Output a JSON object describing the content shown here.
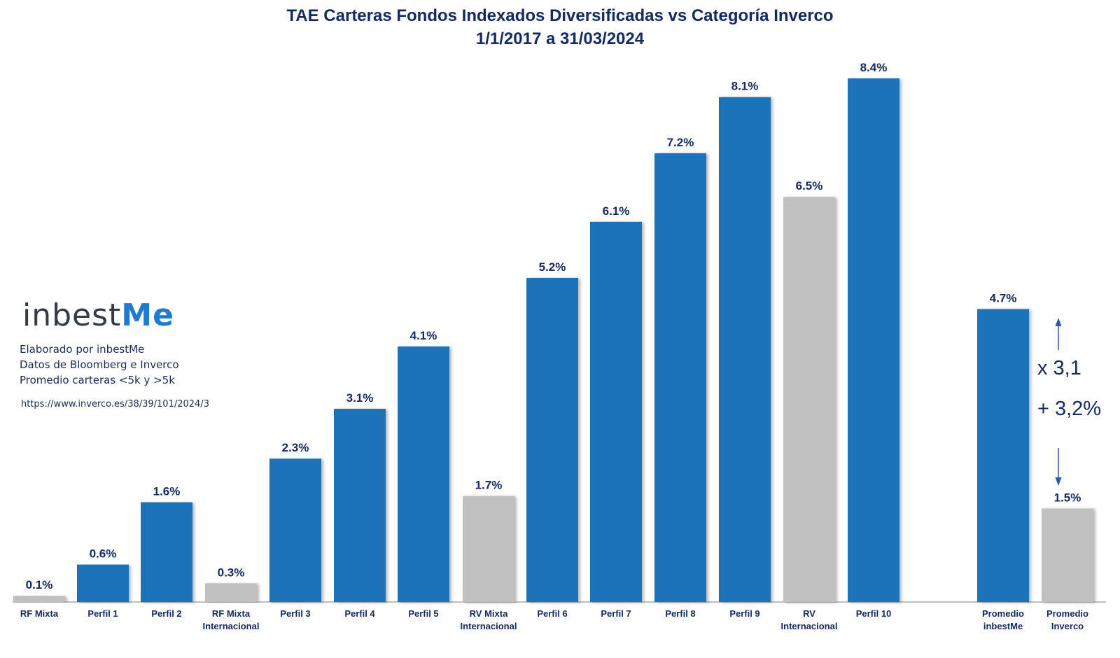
{
  "chart_data": {
    "type": "bar",
    "title": "TAE Carteras Fondos Indexados Diversificadas vs Categoría Inverco",
    "subtitle": "1/1/2017 a 31/03/2024",
    "categories": [
      [
        "RF Mixta"
      ],
      [
        "Perfil 1"
      ],
      [
        "Perfil 2"
      ],
      [
        "RF Mixta",
        "Internacional"
      ],
      [
        "Perfil 3"
      ],
      [
        "Perfil 4"
      ],
      [
        "Perfil 5"
      ],
      [
        "RV Mixta",
        "Internacional"
      ],
      [
        "Perfil 6"
      ],
      [
        "Perfil 7"
      ],
      [
        "Perfil 8"
      ],
      [
        "Perfil 9"
      ],
      [
        "RV",
        "Internacional"
      ],
      [
        "Perfil 10"
      ],
      [
        "Promedio",
        "inbestMe"
      ],
      [
        "Promedio",
        "Inverco"
      ]
    ],
    "values": [
      0.1,
      0.6,
      1.6,
      0.3,
      2.3,
      3.1,
      4.1,
      1.7,
      5.2,
      6.1,
      7.2,
      8.1,
      6.5,
      8.4,
      4.7,
      1.5
    ],
    "value_labels": [
      "0.1%",
      "0.6%",
      "1.6%",
      "0.3%",
      "2.3%",
      "3.1%",
      "4.1%",
      "1.7%",
      "5.2%",
      "6.1%",
      "7.2%",
      "8.1%",
      "6.5%",
      "8.4%",
      "4.7%",
      "1.5%"
    ],
    "bar_kind": [
      "inverco",
      "inbestme",
      "inbestme",
      "inverco",
      "inbestme",
      "inbestme",
      "inbestme",
      "inverco",
      "inbestme",
      "inbestme",
      "inbestme",
      "inbestme",
      "inverco",
      "inbestme",
      "inbestme",
      "inverco"
    ],
    "colors": {
      "inbestme": "#1a73b8",
      "inverco": "#c0c0c0",
      "text": "#152a63",
      "axis": "#999999"
    },
    "ylim": [
      0,
      9.2
    ],
    "xlabel": "",
    "ylabel": "",
    "grid": false,
    "annotations": [
      "x 3,1",
      "+ 3,2%"
    ]
  },
  "branding": {
    "logo_text_main": "inbest",
    "logo_text_accent": "Me",
    "notes": [
      "Elaborado por inbestMe",
      "Datos de Bloomberg e Inverco",
      "Promedio carteras <5k y >5k"
    ],
    "source_url": "https://www.inverco.es/38/39/101/2024/3"
  }
}
